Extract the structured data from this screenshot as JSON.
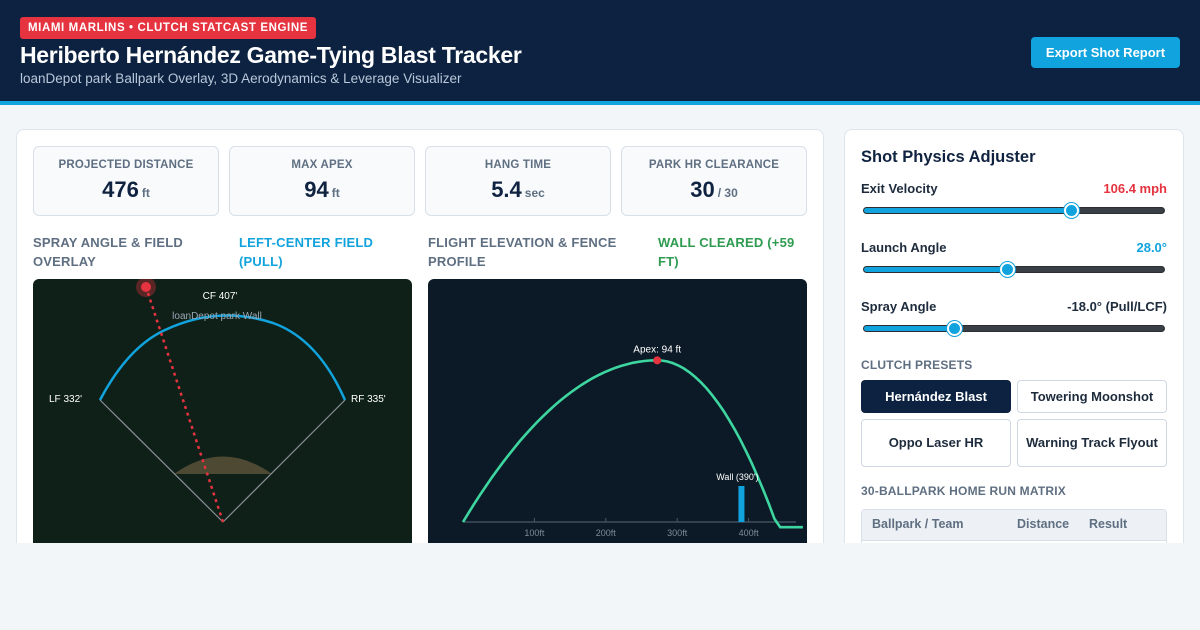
{
  "header": {
    "badge": "MIAMI MARLINS • CLUTCH STATCAST ENGINE",
    "title": "Heriberto Hernández Game-Tying Blast Tracker",
    "subtitle": "loanDepot park Ballpark Overlay, 3D Aerodynamics & Leverage Visualizer",
    "export_label": "Export Shot Report"
  },
  "stats": [
    {
      "label": "PROJECTED DISTANCE",
      "value": "476",
      "unit": "ft"
    },
    {
      "label": "MAX APEX",
      "value": "94",
      "unit": "ft"
    },
    {
      "label": "HANG TIME",
      "value": "5.4",
      "unit": "sec"
    },
    {
      "label": "PARK HR CLEARANCE",
      "value": "30",
      "unit": "/ 30"
    }
  ],
  "spray": {
    "title": "SPRAY ANGLE & FIELD OVERLAY",
    "status": "LEFT-CENTER FIELD (PULL)",
    "status_color": "#11a3dd",
    "cf_label": "CF 407'",
    "wall_label": "loanDepot park Wall",
    "lf_label": "LF 332'",
    "rf_label": "RF 335'",
    "spray_angle_deg": -18.0
  },
  "flight": {
    "title": "FLIGHT ELEVATION & FENCE PROFILE",
    "status": "WALL CLEARED (+59 FT)",
    "status_color": "#2e9b50",
    "apex_label": "Apex: 94 ft",
    "wall_label": "Wall (390')",
    "x_ticks": [
      "100ft",
      "200ft",
      "300ft",
      "400ft"
    ],
    "chart_data": {
      "type": "line",
      "apex_ft": 94,
      "distance_ft": 476,
      "wall_distance_ft": 390,
      "x_ticks": [
        100,
        200,
        300,
        400
      ]
    }
  },
  "adjuster": {
    "title": "Shot Physics Adjuster",
    "sliders": [
      {
        "label": "Exit Velocity",
        "value": "106.4 mph",
        "color": "#e5333f",
        "fraction": 0.69
      },
      {
        "label": "Launch Angle",
        "value": "28.0°",
        "color": "#11a3dd",
        "fraction": 0.475
      },
      {
        "label": "Spray Angle",
        "value": "-18.0° (Pull/LCF)",
        "color": "#1d2b3c",
        "fraction": 0.3
      }
    ],
    "presets_heading": "CLUTCH PRESETS",
    "presets": [
      {
        "label": "Hernández Blast"
      },
      {
        "label": "Towering Moonshot"
      },
      {
        "label": "Oppo Laser HR"
      },
      {
        "label": "Warning Track Flyout"
      }
    ],
    "matrix_heading": "30-BALLPARK HOME RUN MATRIX",
    "matrix_columns": [
      "Ballpark / Team",
      "Distance",
      "Result"
    ]
  }
}
